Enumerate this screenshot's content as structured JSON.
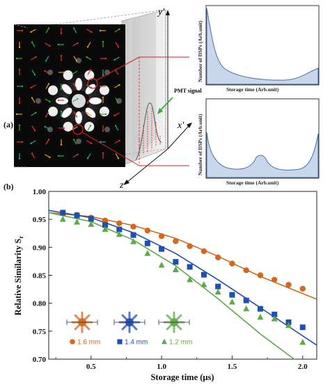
{
  "panel_a": {
    "label": "(a)",
    "axis_labels": {
      "y": "y'",
      "x": "x'",
      "z": "z"
    },
    "pmt_label": "PMT signal",
    "mini_charts": [
      {
        "ylabel": "Number of DSPs (Arb.unit)",
        "xlabel": "Storage time (Arb.unit)"
      },
      {
        "ylabel": "Number of DSPs (Arb.unit)",
        "xlabel": "Storage time (Arb.unit)"
      }
    ]
  },
  "panel_b": {
    "label": "(b)"
  },
  "colors": {
    "orange": "#d2691e",
    "blue": "#1f4fb0",
    "green": "#5ea84a",
    "fill": "#c9d7ec",
    "curve": "#4a6fa5"
  },
  "chart_data": {
    "type": "scatter",
    "xlabel": "Storage time (μs)",
    "ylabel": "Relative Similarity S",
    "ylabel_sub": "r",
    "xlim": [
      0.2,
      2.1
    ],
    "ylim": [
      0.7,
      1.0
    ],
    "x_ticks": [
      "0.5",
      "1.0",
      "1.5",
      "2.0"
    ],
    "y_ticks": [
      "0.70",
      "0.75",
      "0.80",
      "0.85",
      "0.90",
      "0.95",
      "1.00"
    ],
    "series": [
      {
        "name": "1.6 mm",
        "marker": "circle",
        "color": "#d2691e",
        "x": [
          0.3,
          0.4,
          0.5,
          0.6,
          0.7,
          0.8,
          0.9,
          1.0,
          1.1,
          1.2,
          1.3,
          1.4,
          1.5,
          1.6,
          1.7,
          1.8,
          1.9,
          2.0
        ],
        "y": [
          0.962,
          0.958,
          0.953,
          0.948,
          0.943,
          0.937,
          0.93,
          0.92,
          0.911,
          0.902,
          0.893,
          0.882,
          0.871,
          0.859,
          0.85,
          0.842,
          0.833,
          0.826
        ],
        "fit_x": [
          0.2,
          0.5,
          0.8,
          1.1,
          1.4,
          1.7,
          2.1
        ],
        "fit_y": [
          0.962,
          0.955,
          0.939,
          0.916,
          0.884,
          0.848,
          0.807
        ]
      },
      {
        "name": "1.4 mm",
        "marker": "square",
        "color": "#1f4fb0",
        "x": [
          0.3,
          0.4,
          0.5,
          0.6,
          0.7,
          0.8,
          0.9,
          1.0,
          1.1,
          1.2,
          1.3,
          1.4,
          1.5,
          1.6,
          1.7,
          1.8,
          1.9,
          2.0
        ],
        "y": [
          0.962,
          0.957,
          0.951,
          0.94,
          0.932,
          0.922,
          0.907,
          0.897,
          0.874,
          0.865,
          0.851,
          0.83,
          0.815,
          0.805,
          0.79,
          0.78,
          0.766,
          0.757
        ],
        "fit_x": [
          0.2,
          0.5,
          0.8,
          1.1,
          1.4,
          1.7,
          2.1
        ],
        "fit_y": [
          0.966,
          0.953,
          0.926,
          0.889,
          0.842,
          0.792,
          0.725
        ]
      },
      {
        "name": "1.2 mm",
        "marker": "triangle",
        "color": "#5ea84a",
        "x": [
          0.3,
          0.4,
          0.5,
          0.6,
          0.7,
          0.8,
          0.9,
          1.0,
          1.1,
          1.2,
          1.3,
          1.4,
          1.5,
          1.6,
          1.7,
          1.8,
          1.9,
          2.0
        ],
        "y": [
          0.95,
          0.945,
          0.941,
          0.932,
          0.923,
          0.91,
          0.889,
          0.868,
          0.86,
          0.842,
          0.833,
          0.82,
          0.802,
          0.79,
          0.775,
          0.772,
          0.76,
          0.73
        ],
        "fit_x": [
          0.2,
          0.5,
          0.8,
          1.1,
          1.4,
          1.7,
          2.1
        ],
        "fit_y": [
          0.962,
          0.946,
          0.913,
          0.867,
          0.808,
          0.745,
          0.67
        ]
      }
    ]
  }
}
